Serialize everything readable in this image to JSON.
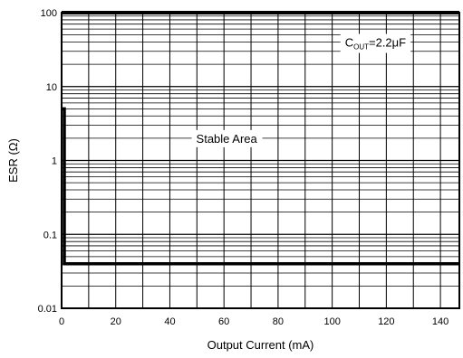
{
  "chart_data": {
    "type": "line",
    "title": "",
    "xlabel": "Output Current (mA)",
    "ylabel": "ESR (Ω)",
    "xlim": [
      0,
      147
    ],
    "ylim": [
      0.01,
      100
    ],
    "yscale": "log",
    "grid": true,
    "x_ticks": [
      {
        "value": 0,
        "label": "0"
      },
      {
        "value": 20,
        "label": "20"
      },
      {
        "value": 40,
        "label": "40"
      },
      {
        "value": 60,
        "label": "60"
      },
      {
        "value": 80,
        "label": "80"
      },
      {
        "value": 100,
        "label": "100"
      },
      {
        "value": 120,
        "label": "120"
      },
      {
        "value": 140,
        "label": "140"
      }
    ],
    "y_ticks": [
      {
        "value": 100,
        "label": "100"
      },
      {
        "value": 10,
        "label": "10"
      },
      {
        "value": 1,
        "label": "1"
      },
      {
        "value": 0.1,
        "label": "0.1"
      },
      {
        "value": 0.01,
        "label": "0.01"
      }
    ],
    "upper_boundary": {
      "x": [
        0,
        147
      ],
      "y": [
        100,
        100
      ]
    },
    "lower_boundary": {
      "x": [
        0,
        1,
        1,
        147
      ],
      "y": [
        5,
        5,
        0.04,
        0.04
      ]
    },
    "annotations": {
      "cout": {
        "c": "C",
        "sub": "OUT",
        "value": "=2.2μF",
        "x": 116,
        "y": 40
      },
      "region": {
        "text": "Stable Area",
        "x": 61,
        "y": 2
      }
    }
  }
}
